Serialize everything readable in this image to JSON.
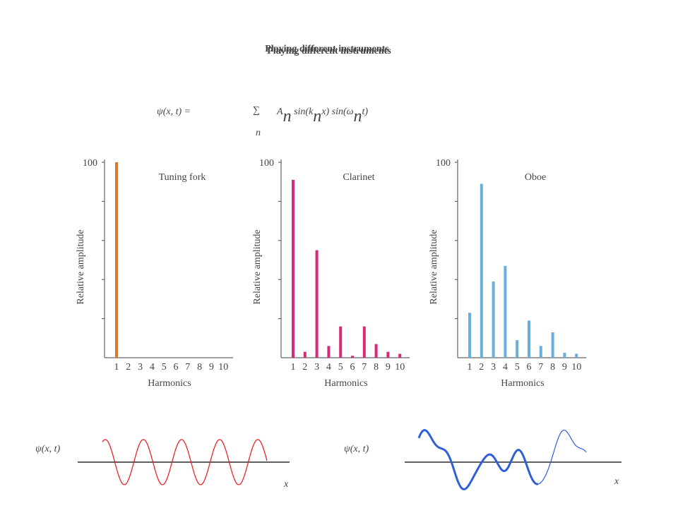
{
  "title": "Playing different instruments",
  "formula": {
    "lhs": "ψ(x, t) =",
    "sum": "∑",
    "index": "n",
    "rhs": [
      "A",
      "n",
      " sin(k",
      "n",
      "x) sin(ω",
      "n",
      "t)"
    ]
  },
  "waves": [
    {
      "label": "ψ(x, t)",
      "axis_label": "x"
    },
    {
      "label": "ψ(x, t)",
      "axis_label": "x"
    }
  ],
  "chart_data": [
    {
      "type": "bar",
      "title": "Tuning fork",
      "x_label": "Harmonics",
      "y_label": "Relative amplitude",
      "categories": [
        "1",
        "2",
        "3",
        "4",
        "5",
        "6",
        "7",
        "8",
        "9",
        "10"
      ],
      "values": [
        100,
        0,
        0,
        0,
        0,
        0,
        0,
        0,
        0,
        0
      ],
      "color": "#d9772f",
      "ylim": [
        0,
        100
      ],
      "yticks": [
        100
      ],
      "minor_yticks": [
        20,
        40,
        60,
        80
      ]
    },
    {
      "type": "bar",
      "title": "Clarinet",
      "x_label": "Harmonics",
      "y_label": "Relative amplitude",
      "categories": [
        "1",
        "2",
        "3",
        "4",
        "5",
        "6",
        "7",
        "8",
        "9",
        "10"
      ],
      "values": [
        91,
        3,
        55,
        6,
        16,
        1,
        16,
        7,
        3,
        2
      ],
      "color": "#d62a7a",
      "ylim": [
        0,
        100
      ],
      "yticks": [
        100
      ],
      "minor_yticks": [
        20,
        40,
        60,
        80
      ]
    },
    {
      "type": "bar",
      "title": "Oboe",
      "x_label": "Harmonics",
      "y_label": "Relative amplitude",
      "categories": [
        "1",
        "2",
        "3",
        "4",
        "5",
        "6",
        "7",
        "8",
        "9",
        "10"
      ],
      "values": [
        23,
        89,
        39,
        47,
        9,
        19,
        6,
        13,
        2.5,
        2
      ],
      "color": "#6aaedd",
      "ylim": [
        0,
        100
      ],
      "yticks": [
        100
      ],
      "minor_yticks": [
        20,
        40,
        60,
        80
      ]
    }
  ]
}
